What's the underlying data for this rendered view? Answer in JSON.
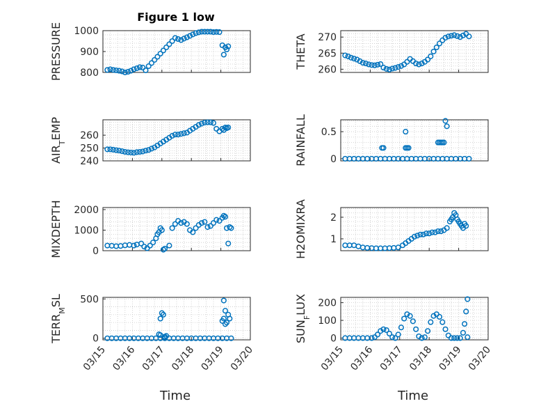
{
  "figure": {
    "title": "Figure 1 low",
    "xlabel": "Time",
    "x_ticks": [
      "03/15",
      "03/16",
      "03/17",
      "03/18",
      "03/19",
      "03/20"
    ],
    "marker_color": "#0072BD"
  },
  "chart_data": [
    {
      "type": "scatter",
      "ylabel": "PRESSURE",
      "ylabel_sub": "",
      "ylim": [
        800,
        1000
      ],
      "yticks": [
        800,
        900,
        1000
      ],
      "grid": true,
      "x": [
        0.15,
        0.25,
        0.35,
        0.45,
        0.55,
        0.65,
        0.75,
        0.85,
        0.95,
        1.05,
        1.15,
        1.25,
        1.35,
        1.45,
        1.55,
        1.65,
        1.75,
        1.85,
        1.95,
        2.05,
        2.15,
        2.25,
        2.35,
        2.45,
        2.55,
        2.65,
        2.75,
        2.85,
        2.95,
        3.05,
        3.15,
        3.25,
        3.35,
        3.45,
        3.55,
        3.65,
        3.75,
        3.85,
        3.95,
        4.05,
        4.1,
        4.15,
        4.2,
        4.25
      ],
      "y": [
        812,
        815,
        812,
        810,
        808,
        805,
        800,
        803,
        808,
        815,
        820,
        825,
        823,
        810,
        830,
        845,
        860,
        875,
        890,
        905,
        920,
        935,
        950,
        965,
        960,
        955,
        962,
        968,
        975,
        982,
        988,
        992,
        995,
        995,
        995,
        995,
        993,
        994,
        993,
        930,
        885,
        920,
        910,
        925
      ]
    },
    {
      "type": "scatter",
      "ylabel": "THETA",
      "ylabel_sub": "",
      "ylim": [
        259,
        272
      ],
      "yticks": [
        260,
        265,
        270
      ],
      "grid": true,
      "x": [
        0.15,
        0.25,
        0.35,
        0.45,
        0.55,
        0.65,
        0.75,
        0.85,
        0.95,
        1.05,
        1.15,
        1.25,
        1.35,
        1.45,
        1.55,
        1.65,
        1.75,
        1.85,
        1.95,
        2.05,
        2.15,
        2.25,
        2.35,
        2.45,
        2.55,
        2.65,
        2.75,
        2.85,
        2.95,
        3.05,
        3.15,
        3.25,
        3.35,
        3.45,
        3.55,
        3.65,
        3.75,
        3.85,
        3.95,
        4.05,
        4.15,
        4.25,
        4.35
      ],
      "y": [
        264.3,
        264,
        263.6,
        263.3,
        263,
        262.5,
        262,
        261.8,
        261.5,
        261.3,
        261.2,
        261.4,
        261.6,
        260.5,
        260.1,
        259.9,
        260.2,
        260.4,
        260.7,
        261,
        261.5,
        262.3,
        263.2,
        262.5,
        261.8,
        261.5,
        261.8,
        262.3,
        263,
        264,
        265.5,
        266.8,
        268,
        269,
        269.8,
        270.2,
        270.4,
        270.6,
        270.3,
        270,
        270.5,
        271,
        270.2
      ]
    },
    {
      "type": "scatter",
      "ylabel": "AIR",
      "ylabel_sub": "T",
      "ylabel_suffix": "EMP",
      "ylim": [
        240,
        272
      ],
      "yticks": [
        240,
        250,
        260
      ],
      "grid": true,
      "x": [
        0.15,
        0.25,
        0.35,
        0.45,
        0.55,
        0.65,
        0.75,
        0.85,
        0.95,
        1.05,
        1.15,
        1.25,
        1.35,
        1.45,
        1.55,
        1.65,
        1.75,
        1.85,
        1.95,
        2.05,
        2.15,
        2.25,
        2.35,
        2.45,
        2.55,
        2.65,
        2.75,
        2.85,
        2.95,
        3.05,
        3.15,
        3.25,
        3.35,
        3.45,
        3.55,
        3.65,
        3.75,
        3.85,
        3.95,
        4.05,
        4.1,
        4.15,
        4.2,
        4.25
      ],
      "y": [
        249,
        249,
        248.7,
        248.3,
        248,
        247.5,
        247,
        246.7,
        246.5,
        246.3,
        246.8,
        247,
        247.3,
        248,
        248.5,
        249.5,
        250.5,
        252,
        253.5,
        255,
        256.5,
        258,
        259.5,
        260.5,
        260.5,
        261,
        261.5,
        262,
        263.5,
        265,
        266.5,
        268,
        269,
        269.8,
        270,
        270,
        269.5,
        265,
        263,
        265,
        264,
        266,
        265.5,
        266
      ]
    },
    {
      "type": "scatter",
      "ylabel": "RAINFALL",
      "ylabel_sub": "",
      "ylim": [
        -0.04,
        0.72
      ],
      "yticks": [
        0,
        0.5
      ],
      "grid": true,
      "x": [
        0.15,
        0.3,
        0.45,
        0.6,
        0.75,
        0.9,
        1.05,
        1.2,
        1.35,
        1.5,
        1.65,
        1.8,
        1.95,
        2.1,
        2.25,
        2.4,
        2.55,
        2.7,
        2.85,
        3.0,
        3.15,
        3.3,
        3.45,
        3.6,
        3.75,
        3.9,
        4.05,
        4.2,
        4.35,
        1.4,
        1.45,
        2.2,
        2.25,
        2.3,
        2.2,
        3.3,
        3.35,
        3.4,
        3.45,
        3.5,
        3.6,
        3.55
      ],
      "y": [
        0,
        0,
        0,
        0,
        0,
        0,
        0,
        0,
        0,
        0,
        0,
        0,
        0,
        0,
        0,
        0,
        0,
        0,
        0,
        0,
        0,
        0,
        0,
        0,
        0,
        0,
        0,
        0,
        0,
        0.2,
        0.2,
        0.2,
        0.2,
        0.2,
        0.5,
        0.3,
        0.3,
        0.3,
        0.3,
        0.3,
        0.6,
        0.7
      ]
    },
    {
      "type": "scatter",
      "ylabel": "MIXDEPTH",
      "ylabel_sub": "",
      "ylim": [
        0,
        2100
      ],
      "yticks": [
        0,
        1000,
        2000
      ],
      "grid": true,
      "x": [
        0.15,
        0.3,
        0.45,
        0.6,
        0.75,
        0.9,
        1.05,
        1.15,
        1.3,
        1.4,
        1.5,
        1.6,
        1.7,
        1.8,
        1.85,
        1.9,
        1.95,
        2.0,
        2.05,
        2.1,
        2.25,
        2.35,
        2.45,
        2.55,
        2.65,
        2.75,
        2.85,
        2.95,
        3.05,
        3.15,
        3.25,
        3.35,
        3.45,
        3.55,
        3.65,
        3.75,
        3.85,
        3.95,
        4.05,
        4.1,
        4.15,
        4.2,
        4.25,
        4.3,
        4.35
      ],
      "y": [
        250,
        240,
        220,
        230,
        260,
        280,
        250,
        300,
        350,
        200,
        120,
        250,
        400,
        600,
        800,
        900,
        1100,
        1000,
        50,
        100,
        250,
        1100,
        1300,
        1450,
        1350,
        1400,
        1300,
        1000,
        900,
        1100,
        1250,
        1350,
        1400,
        1150,
        1200,
        1350,
        1500,
        1450,
        1600,
        1700,
        1650,
        1100,
        350,
        1150,
        1100
      ]
    },
    {
      "type": "scatter",
      "ylabel": "H2OMIXRA",
      "ylabel_sub": "",
      "ylim": [
        0.45,
        2.45
      ],
      "yticks": [
        1,
        2
      ],
      "grid": true,
      "x": [
        0.15,
        0.3,
        0.45,
        0.6,
        0.75,
        0.9,
        1.05,
        1.2,
        1.35,
        1.5,
        1.65,
        1.8,
        1.95,
        2.1,
        2.2,
        2.3,
        2.4,
        2.5,
        2.6,
        2.7,
        2.8,
        2.9,
        3.0,
        3.1,
        3.2,
        3.3,
        3.4,
        3.5,
        3.6,
        3.7,
        3.75,
        3.8,
        3.85,
        3.9,
        3.95,
        4.0,
        4.05,
        4.1,
        4.15,
        4.2,
        4.25
      ],
      "y": [
        0.7,
        0.7,
        0.7,
        0.65,
        0.6,
        0.58,
        0.57,
        0.56,
        0.56,
        0.56,
        0.57,
        0.58,
        0.6,
        0.7,
        0.8,
        0.9,
        1.0,
        1.1,
        1.15,
        1.2,
        1.2,
        1.25,
        1.25,
        1.3,
        1.3,
        1.35,
        1.35,
        1.4,
        1.5,
        1.8,
        1.9,
        2.0,
        2.2,
        2.1,
        1.9,
        1.8,
        1.7,
        1.6,
        1.5,
        1.7,
        1.6
      ]
    },
    {
      "type": "scatter",
      "ylabel": "TERR",
      "ylabel_sub": "M",
      "ylabel_suffix": "SL",
      "ylim": [
        -20,
        520
      ],
      "yticks": [
        0,
        500
      ],
      "grid": true,
      "x": [
        0.15,
        0.3,
        0.45,
        0.6,
        0.75,
        0.9,
        1.05,
        1.2,
        1.35,
        1.5,
        1.65,
        1.8,
        1.95,
        2.1,
        2.25,
        2.4,
        2.55,
        2.7,
        2.85,
        3.0,
        3.15,
        3.3,
        3.45,
        3.6,
        3.75,
        3.9,
        4.05,
        4.2,
        4.35,
        1.95,
        2.0,
        2.05,
        2.1,
        2.15,
        1.9,
        1.95,
        2.1,
        4.1,
        4.15,
        4.2,
        4.25,
        4.3,
        4.1,
        4.15,
        4.05
      ],
      "y": [
        0,
        0,
        0,
        0,
        0,
        0,
        0,
        0,
        0,
        0,
        0,
        0,
        0,
        0,
        0,
        0,
        0,
        0,
        0,
        0,
        0,
        0,
        0,
        0,
        0,
        0,
        0,
        0,
        0,
        250,
        320,
        300,
        20,
        30,
        50,
        40,
        15,
        480,
        350,
        200,
        300,
        250,
        250,
        180,
        220
      ]
    },
    {
      "type": "scatter",
      "ylabel": "SUN",
      "ylabel_sub": "F",
      "ylabel_suffix": "LUX",
      "ylim": [
        -10,
        230
      ],
      "yticks": [
        0,
        100,
        200
      ],
      "grid": true,
      "x": [
        0.15,
        0.3,
        0.45,
        0.6,
        0.75,
        0.9,
        1.05,
        1.15,
        1.25,
        1.35,
        1.45,
        1.55,
        1.65,
        1.75,
        1.85,
        1.95,
        2.05,
        2.15,
        2.25,
        2.35,
        2.45,
        2.55,
        2.65,
        2.75,
        2.85,
        2.95,
        3.05,
        3.15,
        3.25,
        3.35,
        3.45,
        3.55,
        3.65,
        3.75,
        3.85,
        3.95,
        4.05,
        4.15,
        4.2,
        4.25,
        4.3,
        4.3
      ],
      "y": [
        0,
        0,
        0,
        0,
        0,
        0,
        0,
        5,
        20,
        40,
        50,
        45,
        25,
        5,
        0,
        20,
        60,
        110,
        135,
        125,
        95,
        50,
        10,
        0,
        5,
        40,
        90,
        125,
        135,
        120,
        90,
        50,
        15,
        0,
        0,
        0,
        0,
        30,
        80,
        150,
        220,
        5
      ]
    }
  ]
}
